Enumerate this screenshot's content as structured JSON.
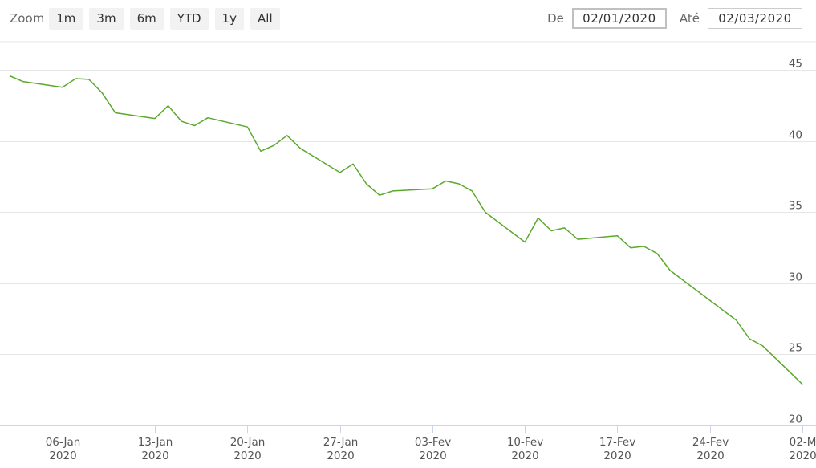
{
  "toolbar": {
    "zoom_label": "Zoom",
    "zoom_buttons": [
      "1m",
      "3m",
      "6m",
      "YTD",
      "1y",
      "All"
    ],
    "from_label": "De",
    "from_value": "02/01/2020",
    "to_label": "Até",
    "to_value": "02/03/2020"
  },
  "chart_data": {
    "type": "line",
    "title": "",
    "xlabel": "",
    "ylabel": "",
    "line_color": "#5aa82d",
    "grid": true,
    "ylim": [
      20,
      47
    ],
    "xlim": [
      "2020-01-02",
      "2020-03-02"
    ],
    "y_ticks": [
      20,
      25,
      30,
      35,
      40,
      45
    ],
    "x_ticks": [
      {
        "date": "2020-01-06",
        "label": "06-Jan",
        "year": "2020"
      },
      {
        "date": "2020-01-13",
        "label": "13-Jan",
        "year": "2020"
      },
      {
        "date": "2020-01-20",
        "label": "20-Jan",
        "year": "2020"
      },
      {
        "date": "2020-01-27",
        "label": "27-Jan",
        "year": "2020"
      },
      {
        "date": "2020-02-03",
        "label": "03-Fev",
        "year": "2020"
      },
      {
        "date": "2020-02-10",
        "label": "10-Fev",
        "year": "2020"
      },
      {
        "date": "2020-02-17",
        "label": "17-Fev",
        "year": "2020"
      },
      {
        "date": "2020-02-24",
        "label": "24-Fev",
        "year": "2020"
      },
      {
        "date": "2020-03-02",
        "label": "02-M",
        "year": "2020"
      }
    ],
    "series": [
      {
        "points": [
          [
            "2020-01-02",
            44.6
          ],
          [
            "2020-01-03",
            44.2
          ],
          [
            "2020-01-06",
            43.8
          ],
          [
            "2020-01-07",
            44.4
          ],
          [
            "2020-01-08",
            44.35
          ],
          [
            "2020-01-09",
            43.4
          ],
          [
            "2020-01-10",
            42.0
          ],
          [
            "2020-01-13",
            41.6
          ],
          [
            "2020-01-14",
            42.5
          ],
          [
            "2020-01-15",
            41.4
          ],
          [
            "2020-01-16",
            41.1
          ],
          [
            "2020-01-17",
            41.65
          ],
          [
            "2020-01-20",
            41.0
          ],
          [
            "2020-01-21",
            39.3
          ],
          [
            "2020-01-22",
            39.7
          ],
          [
            "2020-01-23",
            40.4
          ],
          [
            "2020-01-24",
            39.5
          ],
          [
            "2020-01-27",
            37.8
          ],
          [
            "2020-01-28",
            38.4
          ],
          [
            "2020-01-29",
            37.0
          ],
          [
            "2020-01-30",
            36.2
          ],
          [
            "2020-01-31",
            36.5
          ],
          [
            "2020-02-03",
            36.65
          ],
          [
            "2020-02-04",
            37.2
          ],
          [
            "2020-02-05",
            37.0
          ],
          [
            "2020-02-06",
            36.5
          ],
          [
            "2020-02-07",
            35.0
          ],
          [
            "2020-02-10",
            32.9
          ],
          [
            "2020-02-11",
            34.6
          ],
          [
            "2020-02-12",
            33.7
          ],
          [
            "2020-02-13",
            33.9
          ],
          [
            "2020-02-14",
            33.1
          ],
          [
            "2020-02-17",
            33.35
          ],
          [
            "2020-02-18",
            32.5
          ],
          [
            "2020-02-19",
            32.6
          ],
          [
            "2020-02-20",
            32.1
          ],
          [
            "2020-02-21",
            30.9
          ],
          [
            "2020-02-26",
            27.4
          ],
          [
            "2020-02-27",
            26.1
          ],
          [
            "2020-02-28",
            25.6
          ],
          [
            "2020-03-02",
            22.9
          ]
        ]
      }
    ]
  }
}
